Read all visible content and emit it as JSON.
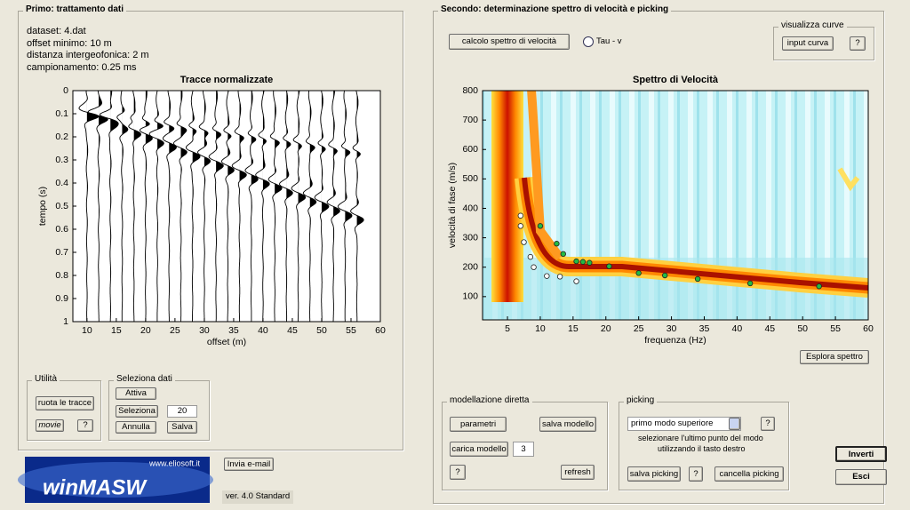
{
  "panel1": {
    "title": "Primo: trattamento dati",
    "info": [
      "dataset: 4.dat",
      "offset minimo: 10 m",
      "distanza intergeofonica: 2 m",
      "campionamento: 0.25 ms"
    ],
    "utilita": {
      "title": "Utilità",
      "ruota": "ruota le tracce",
      "movie": "movie",
      "help": "?"
    },
    "seleziona": {
      "title": "Seleziona dati",
      "attiva": "Attiva",
      "seleziona": "Seleziona",
      "value": "20",
      "annulla": "Annulla",
      "salva": "Salva"
    }
  },
  "traces_chart": {
    "type": "wiggle",
    "title": "Tracce normalizzate",
    "x_label": "offset (m)",
    "y_label": "tempo (s)",
    "xlim": [
      7.6,
      60
    ],
    "ylim": [
      0,
      1
    ],
    "xticks": [
      10,
      15,
      20,
      25,
      30,
      35,
      40,
      45,
      50,
      55,
      60
    ],
    "yticks": [
      0,
      0.1,
      0.2,
      0.3,
      0.4,
      0.5,
      0.6,
      0.7,
      0.8,
      0.9,
      1
    ],
    "x": [
      10,
      12,
      14,
      16,
      18,
      20,
      22,
      24,
      26,
      28,
      30,
      32,
      34,
      36,
      38,
      40,
      42,
      44,
      46,
      48,
      50,
      52,
      54,
      56
    ]
  },
  "logo": {
    "site": "www.eliosoft.it",
    "name": "winMASW"
  },
  "email": "Invia e-mail",
  "version": "ver. 4.0 Standard",
  "panel2": {
    "title": "Secondo: determinazione spettro di velocità e picking",
    "calcolo": "calcolo spettro di velocità",
    "radio": "Tau - v",
    "visualizza": {
      "title": "visualizza curve",
      "input": "input curva",
      "help": "?"
    },
    "esplora": "Esplora spettro",
    "modellazione": {
      "title": "modellazione diretta",
      "parametri": "parametri",
      "salva": "salva modello",
      "carica": "carica modello",
      "value": "3",
      "help": "?",
      "refresh": "refresh"
    },
    "picking": {
      "title": "picking",
      "mode": "primo modo superiore",
      "help": "?",
      "hint1": "selezionare l'ultimo punto del modo",
      "hint2": "utilizzando il tasto destro",
      "salva": "salva picking",
      "help2": "?",
      "cancella": "cancella picking"
    },
    "inverti": "Inverti",
    "esci": "Esci"
  },
  "spectrum_chart": {
    "type": "scatter",
    "title": "Spettro di Velocità",
    "x_label": "frequenza (Hz)",
    "y_label": "velocità di fase (m/s)",
    "xlim": [
      1.2,
      60
    ],
    "ylim": [
      21,
      800
    ],
    "xticks": [
      5,
      10,
      15,
      20,
      25,
      30,
      35,
      40,
      45,
      50,
      55,
      60
    ],
    "yticks": [
      100,
      200,
      300,
      400,
      500,
      600,
      700,
      800
    ],
    "series": [
      {
        "color": "#ffffff",
        "x": [
          7,
          7,
          7.5,
          8.5,
          9,
          11,
          13,
          15.5
        ],
        "y": [
          375,
          340,
          285,
          235,
          200,
          170,
          168,
          152
        ]
      },
      {
        "color": "#22bb44",
        "x": [
          10,
          12.5,
          13.5,
          15.5,
          16.5,
          17.5,
          20.5,
          25,
          29,
          34,
          42,
          52.5
        ],
        "y": [
          340,
          280,
          245,
          220,
          218,
          215,
          203,
          180,
          172,
          160,
          145,
          135
        ]
      }
    ]
  }
}
